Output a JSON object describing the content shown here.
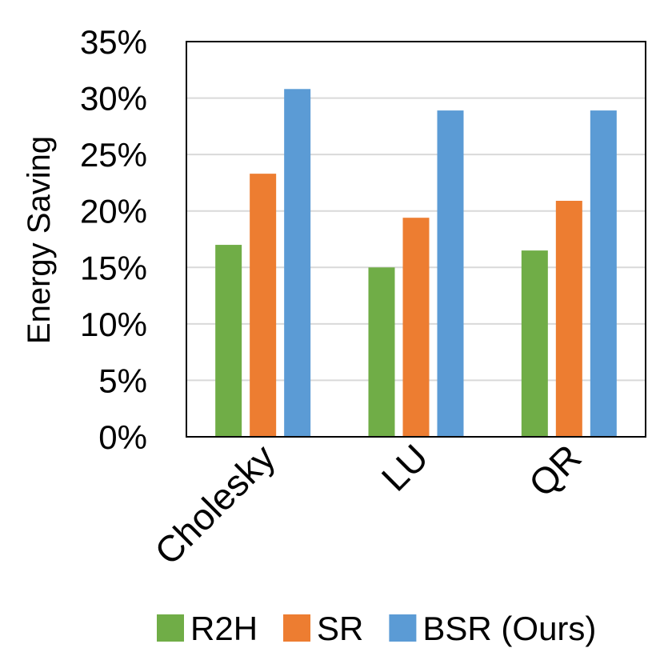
{
  "chart_data": {
    "type": "bar",
    "title": "",
    "xlabel": "",
    "ylabel": "Energy Saving",
    "categories": [
      "Cholesky",
      "LU",
      "QR"
    ],
    "series": [
      {
        "name": "R2H",
        "values": [
          17.0,
          15.0,
          16.5
        ]
      },
      {
        "name": "SR",
        "values": [
          23.3,
          19.4,
          20.9
        ]
      },
      {
        "name": "BSR (Ours)",
        "values": [
          30.8,
          28.9,
          28.9
        ]
      }
    ],
    "ylim": [
      0,
      35
    ],
    "yticks": [
      0,
      5,
      10,
      15,
      20,
      25,
      30,
      35
    ],
    "ytick_labels": [
      "0%",
      "5%",
      "10%",
      "15%",
      "20%",
      "25%",
      "30%",
      "35%"
    ],
    "grid": true,
    "legend_position": "bottom",
    "colors": {
      "R2H": "#70ad47",
      "SR": "#ed7d31",
      "BSR (Ours)": "#5b9bd5",
      "grid": "#d9d9d9",
      "axis": "#000000"
    }
  }
}
